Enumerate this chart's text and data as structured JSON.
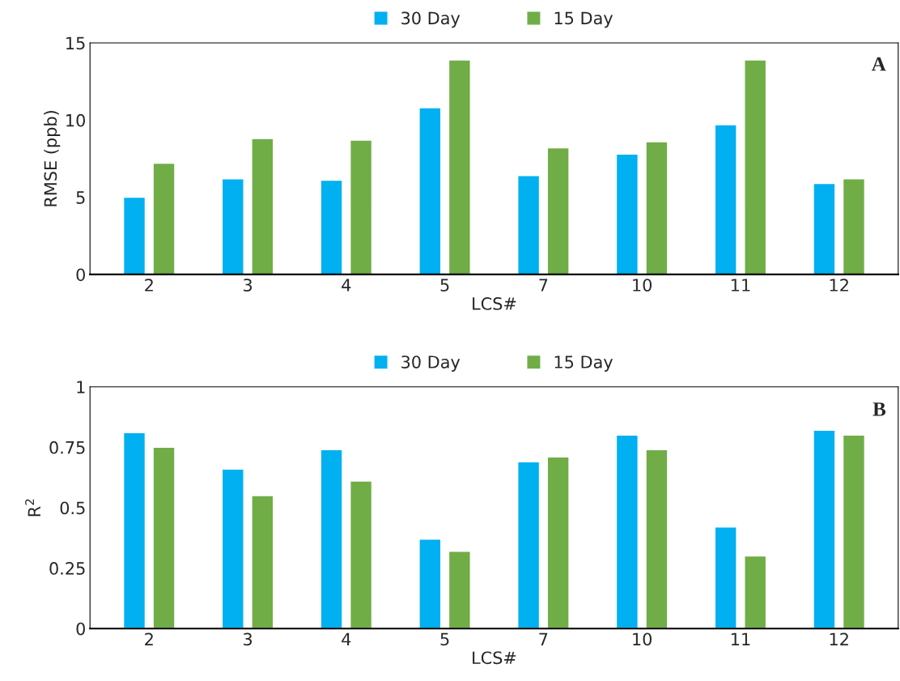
{
  "chart_data": [
    {
      "type": "bar",
      "ylabel": "RMSE (ppb)",
      "xlabel": "LCS#",
      "categories": [
        "2",
        "3",
        "4",
        "5",
        "7",
        "10",
        "11",
        "12"
      ],
      "series": [
        {
          "name": "30 Day",
          "color": "#00b0f0",
          "values": [
            5.0,
            6.2,
            6.1,
            10.8,
            6.4,
            7.8,
            9.7,
            5.9
          ]
        },
        {
          "name": "15 Day",
          "color": "#70ad47",
          "values": [
            7.2,
            8.8,
            8.7,
            13.9,
            8.2,
            8.6,
            13.9,
            6.2
          ]
        }
      ],
      "ylim": [
        0,
        15
      ],
      "yticks": [
        0,
        5,
        10,
        15
      ],
      "legend": "top",
      "annotations": [
        "A"
      ]
    },
    {
      "type": "bar",
      "ylabel": "R$^{2}$",
      "xlabel": "LCS#",
      "categories": [
        "2",
        "3",
        "4",
        "5",
        "7",
        "10",
        "11",
        "12"
      ],
      "series": [
        {
          "name": "30 Day",
          "color": "#00b0f0",
          "values": [
            0.81,
            0.66,
            0.74,
            0.37,
            0.69,
            0.8,
            0.42,
            0.82
          ]
        },
        {
          "name": "15 Day",
          "color": "#70ad47",
          "values": [
            0.75,
            0.55,
            0.61,
            0.32,
            0.71,
            0.74,
            0.3,
            0.8
          ]
        }
      ],
      "ylim": [
        0,
        1
      ],
      "yticks": [
        0,
        0.25,
        0.5,
        0.75,
        1
      ],
      "legend": "top",
      "annotations": [
        "B"
      ]
    }
  ]
}
